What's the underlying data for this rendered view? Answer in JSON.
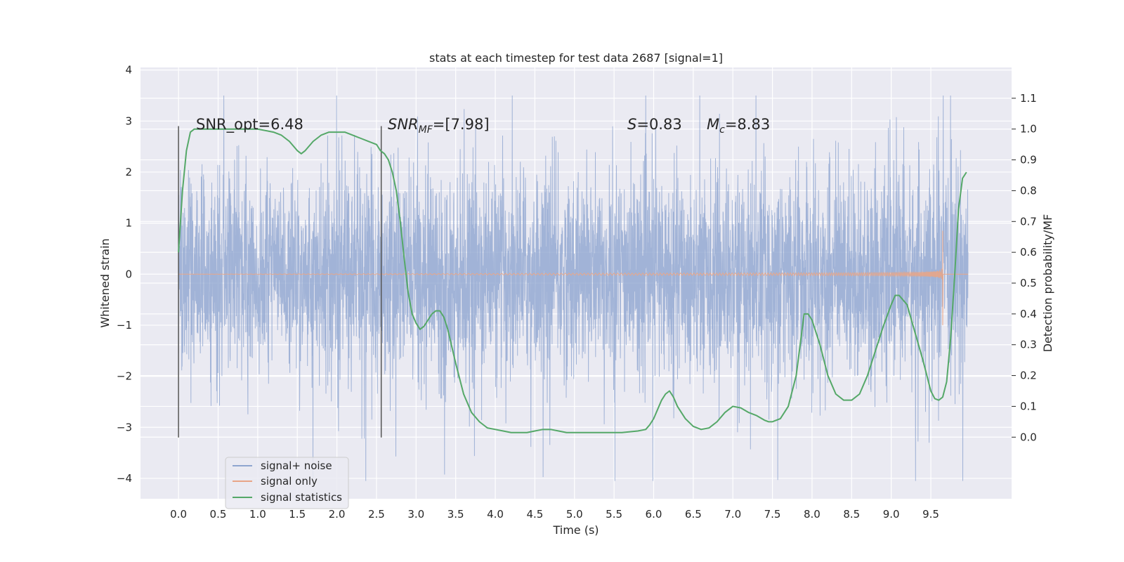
{
  "chart_data": {
    "type": "line",
    "title": "stats at each timestep for test data 2687 [signal=1]",
    "xlabel": "Time (s)",
    "ylabel_left": "Whitened strain",
    "ylabel_right": "Detection probability/MF",
    "xlim": [
      -0.48,
      10.52
    ],
    "ylim_left": [
      -4.4,
      4.05
    ],
    "ylim_right": [
      -0.2,
      1.2
    ],
    "xticks": [
      "0.0",
      "0.5",
      "1.0",
      "1.5",
      "2.0",
      "2.5",
      "3.0",
      "3.5",
      "4.0",
      "4.5",
      "5.0",
      "5.5",
      "6.0",
      "6.5",
      "7.0",
      "7.5",
      "8.0",
      "8.5",
      "9.0",
      "9.5"
    ],
    "yticks_left": [
      "4",
      "3",
      "2",
      "1",
      "0",
      "−1",
      "−2",
      "−3",
      "−4"
    ],
    "yticks_right": [
      "1.1",
      "1.0",
      "0.9",
      "0.8",
      "0.7",
      "0.6",
      "0.5",
      "0.4",
      "0.3",
      "0.2",
      "0.1",
      "0.0"
    ],
    "grid": true,
    "legend_position": "lower-left",
    "colors": {
      "noise": "#8fa5cf",
      "signal": "#dd8452",
      "stats": "#55a868",
      "axes_bg": "#eaeaf2",
      "vline": "#555555"
    },
    "annotations": {
      "snr_opt": "SNR_opt=6.48",
      "snr_mf_label": "SNR",
      "snr_mf_sub": "MF",
      "snr_mf_value": "=[7.98]",
      "s_label": "S",
      "s_value": "=0.83",
      "mc_label": "M",
      "mc_sub": "c",
      "mc_value": "=8.83"
    },
    "vertical_lines": [
      {
        "x": 0.0,
        "y_range": [
          -3.2,
          2.9
        ]
      },
      {
        "x": 2.56,
        "y_range": [
          -3.2,
          2.9
        ]
      }
    ],
    "series": [
      {
        "name": "signal+ noise",
        "kind": "noise_band",
        "x_range": [
          0.0,
          9.97
        ],
        "typical_abs_amplitude": 1.2,
        "max": 3.5,
        "min": -4.05
      },
      {
        "name": "signal only",
        "kind": "chirp",
        "x_range": [
          0.0,
          9.97
        ],
        "merger_time": 9.65,
        "peak_amplitude": 0.85,
        "trough_amplitude": -1.0
      },
      {
        "name": "signal statistics",
        "kind": "line",
        "axis": "right",
        "x": [
          0.0,
          0.05,
          0.1,
          0.15,
          0.2,
          0.3,
          0.4,
          0.6,
          0.8,
          1.0,
          1.2,
          1.3,
          1.4,
          1.5,
          1.55,
          1.6,
          1.7,
          1.8,
          1.9,
          2.0,
          2.1,
          2.2,
          2.3,
          2.4,
          2.5,
          2.55,
          2.6,
          2.65,
          2.7,
          2.75,
          2.8,
          2.85,
          2.9,
          2.95,
          3.0,
          3.05,
          3.1,
          3.15,
          3.2,
          3.25,
          3.3,
          3.35,
          3.4,
          3.5,
          3.6,
          3.7,
          3.8,
          3.9,
          4.0,
          4.1,
          4.2,
          4.3,
          4.4,
          4.5,
          4.6,
          4.7,
          4.8,
          4.9,
          5.0,
          5.2,
          5.4,
          5.6,
          5.8,
          5.9,
          5.95,
          6.0,
          6.05,
          6.1,
          6.15,
          6.2,
          6.25,
          6.3,
          6.4,
          6.5,
          6.6,
          6.7,
          6.8,
          6.9,
          6.95,
          7.0,
          7.1,
          7.2,
          7.3,
          7.4,
          7.45,
          7.5,
          7.6,
          7.7,
          7.8,
          7.85,
          7.9,
          7.95,
          8.0,
          8.1,
          8.2,
          8.3,
          8.4,
          8.5,
          8.6,
          8.7,
          8.8,
          8.9,
          9.0,
          9.05,
          9.1,
          9.2,
          9.3,
          9.4,
          9.5,
          9.55,
          9.6,
          9.65,
          9.7,
          9.75,
          9.8,
          9.85,
          9.9,
          9.95
        ],
        "y": [
          0.6,
          0.8,
          0.93,
          0.99,
          1.0,
          1.0,
          1.0,
          1.0,
          1.0,
          1.0,
          0.99,
          0.98,
          0.96,
          0.93,
          0.92,
          0.93,
          0.96,
          0.98,
          0.99,
          0.99,
          0.99,
          0.98,
          0.97,
          0.96,
          0.95,
          0.93,
          0.92,
          0.9,
          0.86,
          0.8,
          0.7,
          0.58,
          0.47,
          0.4,
          0.37,
          0.35,
          0.36,
          0.38,
          0.4,
          0.41,
          0.41,
          0.39,
          0.35,
          0.24,
          0.14,
          0.08,
          0.05,
          0.03,
          0.025,
          0.02,
          0.015,
          0.015,
          0.015,
          0.02,
          0.025,
          0.025,
          0.02,
          0.015,
          0.015,
          0.015,
          0.015,
          0.015,
          0.02,
          0.025,
          0.04,
          0.06,
          0.09,
          0.12,
          0.14,
          0.15,
          0.13,
          0.1,
          0.06,
          0.035,
          0.025,
          0.03,
          0.05,
          0.08,
          0.09,
          0.1,
          0.095,
          0.08,
          0.07,
          0.055,
          0.05,
          0.05,
          0.06,
          0.1,
          0.2,
          0.3,
          0.4,
          0.4,
          0.38,
          0.3,
          0.2,
          0.14,
          0.12,
          0.12,
          0.14,
          0.2,
          0.28,
          0.36,
          0.43,
          0.46,
          0.46,
          0.43,
          0.34,
          0.25,
          0.15,
          0.125,
          0.12,
          0.13,
          0.18,
          0.32,
          0.52,
          0.74,
          0.84,
          0.86
        ]
      }
    ]
  }
}
